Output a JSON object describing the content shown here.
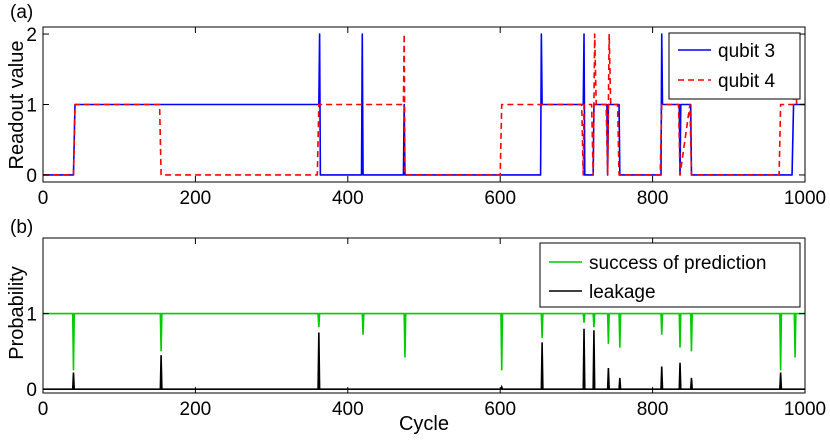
{
  "chart_data": [
    {
      "panel": "(a)",
      "type": "line",
      "ylabel": "Readout value",
      "xlabel": "",
      "xlim": [
        0,
        1000
      ],
      "ylim": [
        -0.1,
        2.1
      ],
      "xticks": [
        0,
        200,
        400,
        600,
        800,
        1000
      ],
      "yticks": [
        0,
        1,
        2
      ],
      "legend_position": "top-right",
      "series": [
        {
          "name": "qubit 3",
          "color": "#0000ff",
          "style": "solid",
          "x": [
            0,
            40,
            42,
            362,
            363,
            364,
            418,
            419,
            420,
            473,
            474,
            475,
            653,
            654,
            655,
            709,
            710,
            711,
            722,
            723,
            724,
            740,
            741,
            742,
            756,
            757,
            758,
            811,
            812,
            813,
            835,
            836,
            837,
            850,
            851,
            852,
            983,
            985,
            1000
          ],
          "values": [
            0,
            0,
            1,
            1,
            2,
            0,
            0,
            2,
            0,
            0,
            1,
            0,
            0,
            2,
            1,
            1,
            2,
            0,
            0,
            1,
            1,
            1,
            0,
            1,
            1,
            0,
            0,
            0,
            2,
            1,
            1,
            0,
            1,
            1,
            0,
            0,
            0,
            1,
            1
          ]
        },
        {
          "name": "qubit 4",
          "color": "#ff0000",
          "style": "dashed",
          "x": [
            0,
            40,
            42,
            153,
            155,
            360,
            362,
            473,
            474,
            475,
            600,
            602,
            653,
            655,
            707,
            709,
            710,
            720,
            722,
            724,
            726,
            739,
            741,
            743,
            745,
            754,
            756,
            810,
            812,
            834,
            836,
            849,
            851,
            966,
            968,
            985,
            987,
            989,
            1000
          ],
          "values": [
            0,
            0,
            1,
            1,
            0,
            0,
            1,
            1,
            2,
            0,
            0,
            1,
            1,
            1,
            1,
            0,
            1,
            1,
            0,
            2,
            1,
            1,
            0,
            2,
            1,
            1,
            0,
            0,
            1,
            1,
            0,
            1,
            0,
            0,
            1,
            1,
            2,
            1,
            1
          ]
        }
      ]
    },
    {
      "panel": "(b)",
      "type": "line",
      "ylabel": "Probability",
      "xlabel": "Cycle",
      "xlim": [
        0,
        1000
      ],
      "ylim": [
        -0.05,
        2.0
      ],
      "xticks": [
        0,
        200,
        400,
        600,
        800,
        1000
      ],
      "yticks": [
        0,
        1
      ],
      "legend_position": "top-right",
      "series": [
        {
          "name": "success of prediction",
          "color": "#00cc00",
          "style": "solid",
          "dips": [
            [
              40,
              0.25
            ],
            [
              155,
              0.5
            ],
            [
              362,
              0.82
            ],
            [
              420,
              0.72
            ],
            [
              475,
              0.42
            ],
            [
              602,
              0.25
            ],
            [
              655,
              0.68
            ],
            [
              710,
              0.88
            ],
            [
              723,
              0.82
            ],
            [
              742,
              0.6
            ],
            [
              757,
              0.55
            ],
            [
              812,
              0.72
            ],
            [
              836,
              0.55
            ],
            [
              851,
              0.5
            ],
            [
              968,
              0.25
            ],
            [
              987,
              0.42
            ]
          ]
        },
        {
          "name": "leakage",
          "color": "#000000",
          "style": "solid",
          "spikes": [
            [
              40,
              0.22
            ],
            [
              155,
              0.45
            ],
            [
              362,
              0.75
            ],
            [
              602,
              0.03
            ],
            [
              655,
              0.62
            ],
            [
              710,
              0.8
            ],
            [
              723,
              0.78
            ],
            [
              742,
              0.28
            ],
            [
              757,
              0.15
            ],
            [
              812,
              0.3
            ],
            [
              836,
              0.35
            ],
            [
              851,
              0.15
            ],
            [
              968,
              0.22
            ]
          ]
        }
      ]
    }
  ]
}
